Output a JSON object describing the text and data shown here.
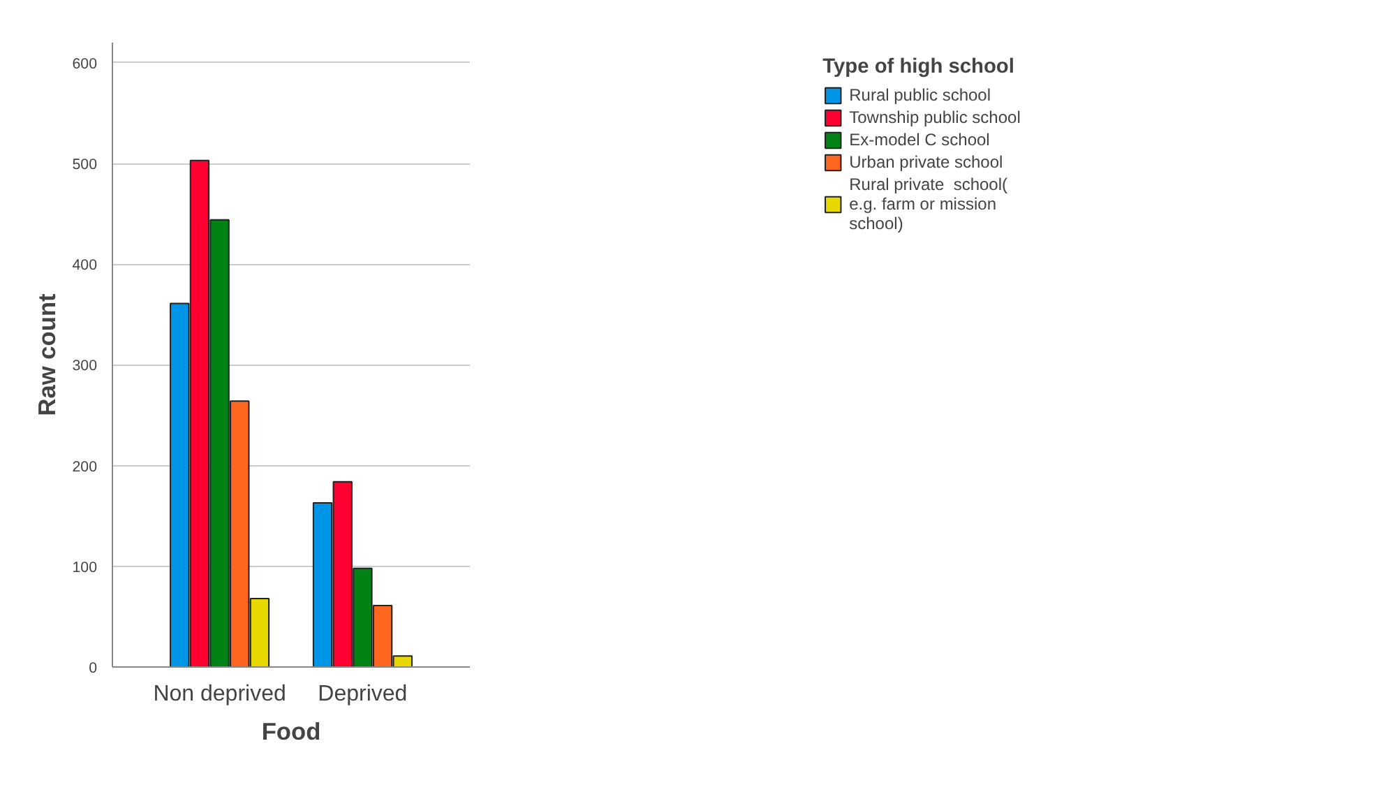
{
  "chart_data": {
    "type": "bar",
    "xlabel": "Food",
    "ylabel": "Raw count",
    "legend_title": "Type of high school",
    "categories": [
      "Non deprived",
      "Deprived"
    ],
    "series": [
      {
        "name": "Rural public school",
        "color": "#0095e6",
        "values": [
          361,
          163
        ]
      },
      {
        "name": "Township public school",
        "color": "#ff0030",
        "values": [
          503,
          184
        ]
      },
      {
        "name": "Ex-model C school",
        "color": "#008214",
        "values": [
          444,
          98
        ]
      },
      {
        "name": "Urban private school",
        "color": "#ff6620",
        "values": [
          264,
          61
        ]
      },
      {
        "name": "Rural private  school( e.g. farm or mission school)",
        "color": "#e6d800",
        "values": [
          68,
          11
        ]
      }
    ],
    "ylim": [
      0,
      620
    ],
    "yticks": [
      0,
      100,
      200,
      300,
      400,
      500,
      600
    ],
    "grid": "y",
    "legend": "top right"
  }
}
